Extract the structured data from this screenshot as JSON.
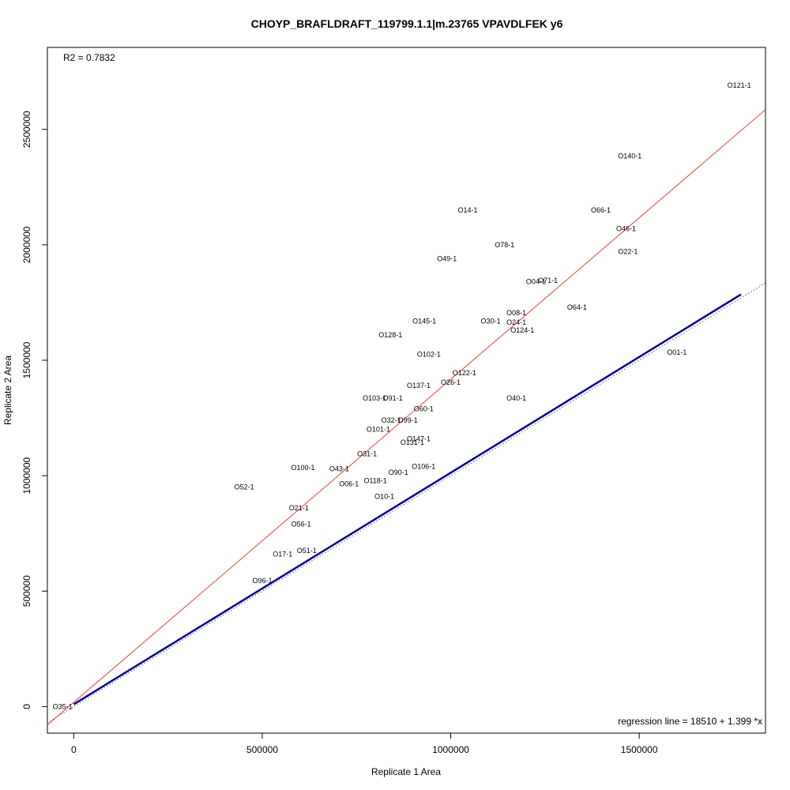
{
  "chart_data": {
    "type": "scatter",
    "title": "CHOYP_BRAFLDRAFT_119799.1.1|m.23765 VPAVDLFEK y6",
    "xlabel": "Replicate 1 Area",
    "ylabel": "Replicate 2 Area",
    "xlim": [
      -70000,
      1835000
    ],
    "ylim": [
      -115000,
      2855000
    ],
    "x_ticks": [
      0,
      500000,
      1000000,
      1500000
    ],
    "x_tick_labels": [
      "0",
      "500000",
      "1000000",
      "1500000"
    ],
    "y_ticks": [
      0,
      500000,
      1000000,
      1500000,
      2000000,
      2500000
    ],
    "y_tick_labels": [
      "0",
      "500000",
      "1000000",
      "1500000",
      "2000000",
      "2500000"
    ],
    "r2_text": "R2 = 0.7832",
    "regression_text": "regression line = 18510 + 1.399 *x",
    "regression": {
      "intercept": 18510,
      "slope": 1.399,
      "color": "#e8443a"
    },
    "fit_line": {
      "x": [
        0,
        1770000
      ],
      "y": [
        10000,
        1785000
      ],
      "color": "#00008b"
    },
    "identity_line": {
      "slope": 1,
      "intercept": 0,
      "color": "#555555"
    },
    "points": [
      {
        "label": "O121-1",
        "x": 1765000,
        "y": 2690000
      },
      {
        "label": "O140-1",
        "x": 1475000,
        "y": 2385000
      },
      {
        "label": "O14-1",
        "x": 1045000,
        "y": 2150000
      },
      {
        "label": "O66-1",
        "x": 1398000,
        "y": 2150000
      },
      {
        "label": "O46-1",
        "x": 1465000,
        "y": 2070000
      },
      {
        "label": "O78-1",
        "x": 1143000,
        "y": 2000000
      },
      {
        "label": "O22-1",
        "x": 1470000,
        "y": 1970000
      },
      {
        "label": "O49-1",
        "x": 990000,
        "y": 1940000
      },
      {
        "label": "O04-1",
        "x": 1226000,
        "y": 1840000
      },
      {
        "label": "O71-1",
        "x": 1258000,
        "y": 1845000
      },
      {
        "label": "O64-1",
        "x": 1335000,
        "y": 1730000
      },
      {
        "label": "O08-1",
        "x": 1174000,
        "y": 1705000
      },
      {
        "label": "O145-1",
        "x": 930000,
        "y": 1670000
      },
      {
        "label": "O30-1",
        "x": 1106000,
        "y": 1670000
      },
      {
        "label": "O24-1",
        "x": 1174000,
        "y": 1665000
      },
      {
        "label": "O124-1",
        "x": 1190000,
        "y": 1630000
      },
      {
        "label": "O128-1",
        "x": 840000,
        "y": 1610000
      },
      {
        "label": "O01-1",
        "x": 1600000,
        "y": 1535000
      },
      {
        "label": "O102-1",
        "x": 942000,
        "y": 1525000
      },
      {
        "label": "O122-1",
        "x": 1036000,
        "y": 1445000
      },
      {
        "label": "O26-1",
        "x": 1000000,
        "y": 1405000
      },
      {
        "label": "O137-1",
        "x": 915000,
        "y": 1390000
      },
      {
        "label": "O103-1",
        "x": 798000,
        "y": 1335000
      },
      {
        "label": "O91-1",
        "x": 846000,
        "y": 1335000
      },
      {
        "label": "O40-1",
        "x": 1174000,
        "y": 1335000
      },
      {
        "label": "O60-1",
        "x": 928000,
        "y": 1290000
      },
      {
        "label": "O32-1",
        "x": 842000,
        "y": 1240000
      },
      {
        "label": "O99-1",
        "x": 886000,
        "y": 1240000
      },
      {
        "label": "O101-1",
        "x": 808000,
        "y": 1200000
      },
      {
        "label": "O147-1",
        "x": 915000,
        "y": 1160000
      },
      {
        "label": "O131-1",
        "x": 898000,
        "y": 1145000
      },
      {
        "label": "O31-1",
        "x": 778000,
        "y": 1095000
      },
      {
        "label": "O100-1",
        "x": 608000,
        "y": 1035000
      },
      {
        "label": "O43-1",
        "x": 704000,
        "y": 1030000
      },
      {
        "label": "O106-1",
        "x": 928000,
        "y": 1040000
      },
      {
        "label": "O90-1",
        "x": 861000,
        "y": 1015000
      },
      {
        "label": "O118-1",
        "x": 800000,
        "y": 978000
      },
      {
        "label": "O06-1",
        "x": 730000,
        "y": 965000
      },
      {
        "label": "O52-1",
        "x": 452000,
        "y": 950000
      },
      {
        "label": "O10-1",
        "x": 824000,
        "y": 910000
      },
      {
        "label": "O21-1",
        "x": 597000,
        "y": 860000
      },
      {
        "label": "O56-1",
        "x": 603000,
        "y": 790000
      },
      {
        "label": "O51-1",
        "x": 618000,
        "y": 675000
      },
      {
        "label": "O17-1",
        "x": 554000,
        "y": 660000
      },
      {
        "label": "O96-1",
        "x": 500000,
        "y": 545000
      },
      {
        "label": "O35-1",
        "x": -30000,
        "y": 0
      }
    ]
  }
}
